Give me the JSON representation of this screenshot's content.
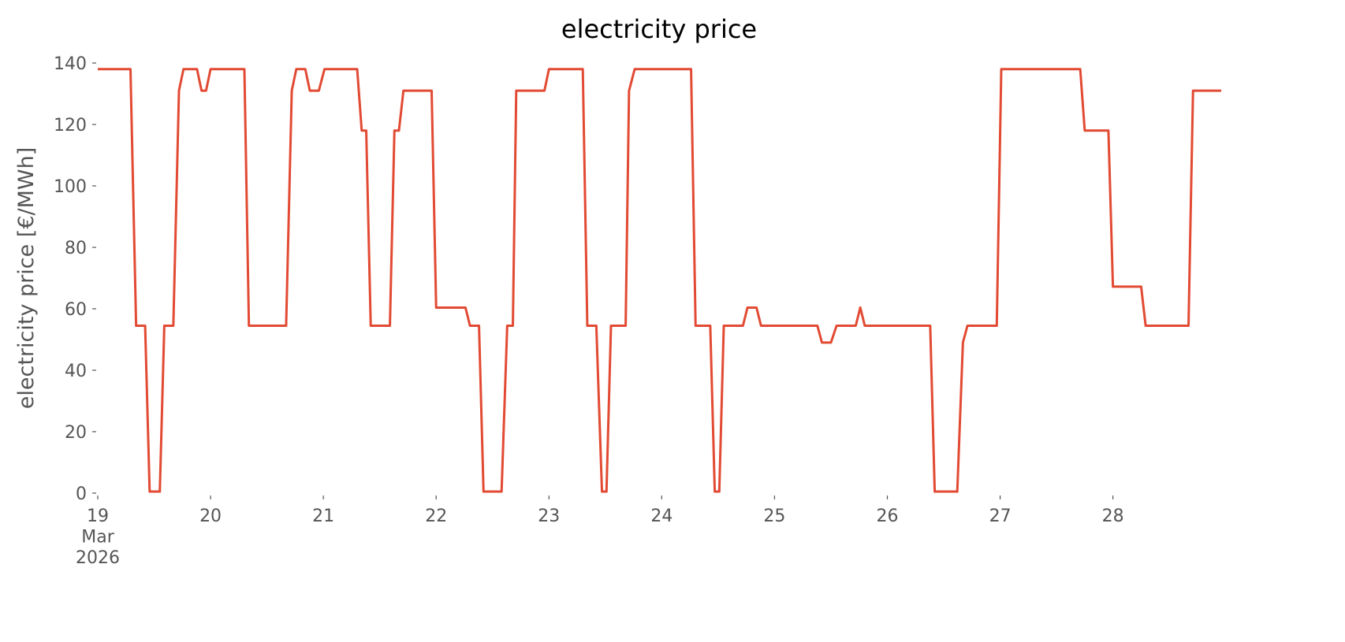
{
  "chart_data": {
    "type": "line",
    "title": "electricity price",
    "y_label": "electricity price [€/MWh]",
    "x": [
      19.0,
      19.29,
      19.34,
      19.42,
      19.46,
      19.55,
      19.59,
      19.67,
      19.72,
      19.76,
      19.88,
      19.92,
      19.96,
      20.0,
      20.3,
      20.34,
      20.67,
      20.72,
      20.76,
      20.84,
      20.88,
      20.96,
      21.01,
      21.3,
      21.34,
      21.38,
      21.42,
      21.59,
      21.63,
      21.67,
      21.71,
      21.96,
      22.0,
      22.26,
      22.3,
      22.38,
      22.42,
      22.58,
      22.63,
      22.68,
      22.71,
      22.96,
      23.0,
      23.3,
      23.34,
      23.42,
      23.47,
      23.51,
      23.55,
      23.68,
      23.71,
      23.76,
      24.26,
      24.3,
      24.43,
      24.47,
      24.51,
      24.55,
      24.72,
      24.76,
      24.84,
      24.88,
      25.38,
      25.42,
      25.5,
      25.55,
      25.72,
      25.76,
      25.8,
      26.38,
      26.42,
      26.62,
      26.67,
      26.71,
      26.97,
      27.01,
      27.71,
      27.75,
      27.96,
      28.0,
      28.25,
      28.29,
      28.67,
      28.71,
      28.96
    ],
    "series": [
      {
        "name": "electricity price",
        "color": "#E24A33",
        "values": [
          138,
          138,
          54.5,
          54.5,
          0.5,
          0.5,
          54.5,
          54.5,
          131,
          138,
          138,
          131,
          131,
          138,
          138,
          54.5,
          54.5,
          131,
          138,
          138,
          131,
          131,
          138,
          138,
          118,
          118,
          54.5,
          54.5,
          118,
          118,
          131,
          131,
          60.4,
          60.4,
          54.5,
          54.5,
          0.5,
          0.5,
          54.5,
          54.5,
          131,
          131,
          138,
          138,
          54.5,
          54.5,
          0.5,
          0.5,
          54.5,
          54.5,
          131,
          138,
          138,
          54.5,
          54.5,
          0.5,
          0.5,
          54.5,
          54.5,
          60.4,
          60.4,
          54.5,
          54.5,
          49,
          49,
          54.5,
          54.5,
          60.4,
          54.5,
          54.5,
          0.5,
          0.5,
          49,
          54.5,
          54.5,
          138,
          138,
          118,
          118,
          67.2,
          67.2,
          54.5,
          54.5,
          131,
          131
        ]
      }
    ],
    "xlim": [
      19,
      28.96
    ],
    "xticks": [
      {
        "value": 19,
        "label": "19\nMar\n2026"
      },
      20,
      21,
      22,
      23,
      24,
      25,
      26,
      27,
      28
    ],
    "ylim": [
      0,
      140
    ],
    "yticks": [
      0,
      20,
      40,
      60,
      80,
      100,
      120,
      140
    ],
    "grid": false
  }
}
